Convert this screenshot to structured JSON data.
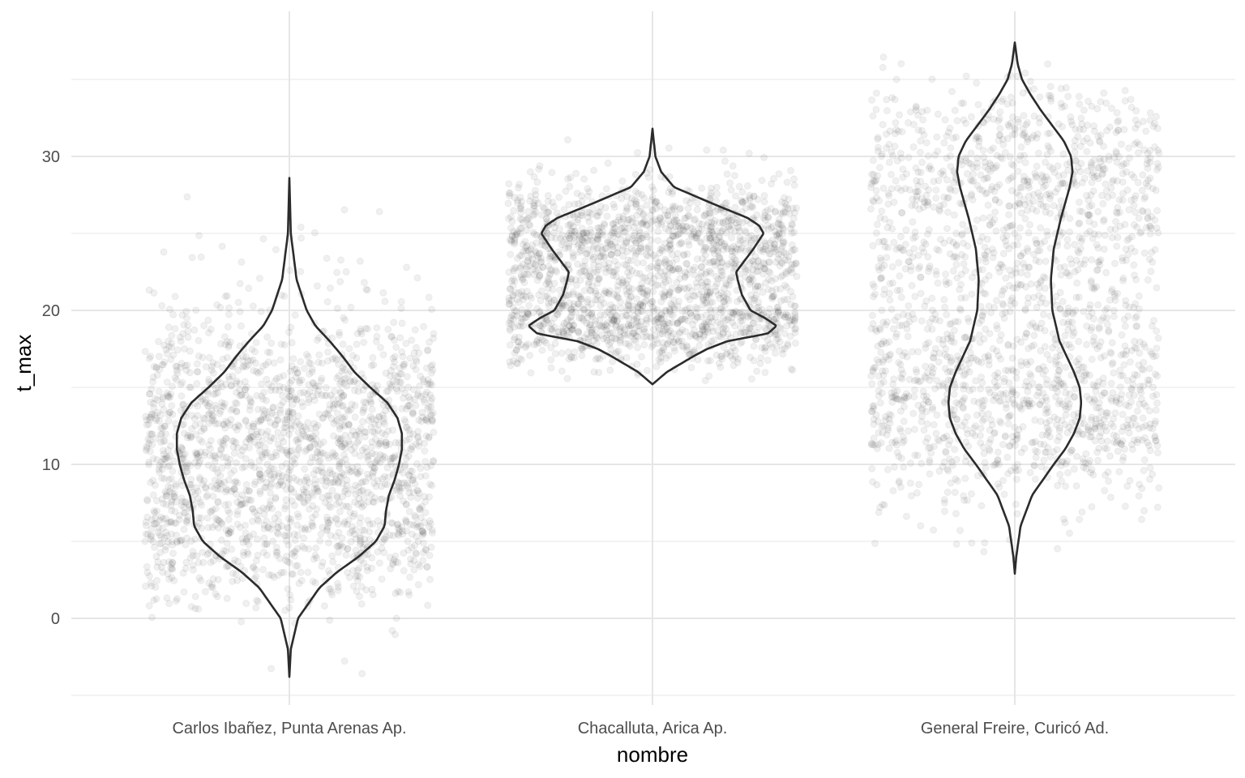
{
  "chart_data": {
    "type": "violin",
    "title": "",
    "xlabel": "nombre",
    "ylabel": "t_max",
    "categories": [
      "Carlos Ibañez, Punta Arenas Ap.",
      "Chacalluta, Arica Ap.",
      "General Freire, Curicó Ad."
    ],
    "ylim": [
      -5,
      37
    ],
    "yticks": [
      0,
      10,
      20,
      30
    ],
    "yticks_labels": [
      "0",
      "10",
      "20",
      "30"
    ],
    "grid": true,
    "legend": "none",
    "jitter_points": true,
    "series": [
      {
        "category": "Carlos Ibañez, Punta Arenas Ap.",
        "min": -3.8,
        "max": 28.6,
        "density_profile": [
          [
            -3.8,
            0.0
          ],
          [
            -2,
            0.01
          ],
          [
            0,
            0.06
          ],
          [
            2,
            0.21
          ],
          [
            3,
            0.33
          ],
          [
            4,
            0.48
          ],
          [
            5,
            0.6
          ],
          [
            6,
            0.66
          ],
          [
            7,
            0.67
          ],
          [
            8,
            0.69
          ],
          [
            9,
            0.73
          ],
          [
            10,
            0.76
          ],
          [
            11,
            0.78
          ],
          [
            12,
            0.78
          ],
          [
            13,
            0.75
          ],
          [
            14,
            0.68
          ],
          [
            15,
            0.56
          ],
          [
            16,
            0.45
          ],
          [
            17,
            0.37
          ],
          [
            18,
            0.28
          ],
          [
            19,
            0.18
          ],
          [
            20,
            0.12
          ],
          [
            22,
            0.05
          ],
          [
            25,
            0.01
          ],
          [
            28.6,
            0.0
          ]
        ]
      },
      {
        "category": "Chacalluta, Arica Ap.",
        "min": 15.2,
        "max": 31.8,
        "density_profile": [
          [
            15.2,
            0.0
          ],
          [
            16,
            0.1
          ],
          [
            17,
            0.28
          ],
          [
            17.5,
            0.38
          ],
          [
            18,
            0.52
          ],
          [
            18.5,
            0.8
          ],
          [
            19,
            0.86
          ],
          [
            19.5,
            0.78
          ],
          [
            20,
            0.68
          ],
          [
            21,
            0.62
          ],
          [
            22,
            0.59
          ],
          [
            22.5,
            0.58
          ],
          [
            23,
            0.62
          ],
          [
            24,
            0.7
          ],
          [
            25,
            0.77
          ],
          [
            25.5,
            0.74
          ],
          [
            26,
            0.66
          ],
          [
            27,
            0.4
          ],
          [
            28,
            0.15
          ],
          [
            29,
            0.06
          ],
          [
            30,
            0.02
          ],
          [
            31.8,
            0.0
          ]
        ]
      },
      {
        "category": "General Freire, Curicó Ad.",
        "min": 2.9,
        "max": 37.4,
        "density_profile": [
          [
            2.9,
            0.0
          ],
          [
            4,
            0.01
          ],
          [
            6,
            0.04
          ],
          [
            8,
            0.12
          ],
          [
            10,
            0.27
          ],
          [
            11,
            0.35
          ],
          [
            12,
            0.41
          ],
          [
            13,
            0.45
          ],
          [
            14,
            0.46
          ],
          [
            15,
            0.45
          ],
          [
            16,
            0.41
          ],
          [
            17,
            0.36
          ],
          [
            18,
            0.31
          ],
          [
            20,
            0.26
          ],
          [
            22,
            0.25
          ],
          [
            24,
            0.27
          ],
          [
            26,
            0.32
          ],
          [
            28,
            0.38
          ],
          [
            29,
            0.4
          ],
          [
            30,
            0.39
          ],
          [
            31,
            0.34
          ],
          [
            32,
            0.26
          ],
          [
            33,
            0.18
          ],
          [
            34,
            0.11
          ],
          [
            35,
            0.05
          ],
          [
            36,
            0.02
          ],
          [
            37.4,
            0.0
          ]
        ]
      }
    ]
  }
}
